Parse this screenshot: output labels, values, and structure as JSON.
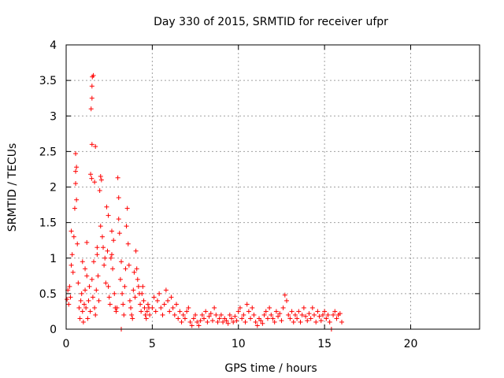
{
  "chart_data": {
    "type": "scatter",
    "title": "Day 330 of 2015, SRMTID for receiver ufpr",
    "xlabel": "GPS time / hours",
    "ylabel": "SRMTID / TECUs",
    "xlim": [
      0,
      24
    ],
    "ylim": [
      0,
      4
    ],
    "xticks": [
      "0",
      "5",
      "10",
      "15",
      "20"
    ],
    "yticks": [
      "0",
      "0.5",
      "1",
      "1.5",
      "2",
      "2.5",
      "3",
      "3.5",
      "4"
    ],
    "grid": true,
    "marker": "plus",
    "series_color": "#ff0000",
    "points": [
      [
        0.05,
        0.42
      ],
      [
        0.1,
        0.55
      ],
      [
        0.15,
        0.35
      ],
      [
        0.2,
        0.6
      ],
      [
        0.25,
        0.45
      ],
      [
        0.3,
        0.9
      ],
      [
        0.35,
        1.05
      ],
      [
        0.4,
        0.8
      ],
      [
        0.45,
        1.3
      ],
      [
        0.5,
        1.7
      ],
      [
        0.55,
        2.05
      ],
      [
        0.55,
        2.22
      ],
      [
        0.6,
        2.28
      ],
      [
        0.55,
        2.47
      ],
      [
        0.6,
        1.82
      ],
      [
        0.65,
        1.2
      ],
      [
        0.7,
        0.65
      ],
      [
        0.75,
        0.3
      ],
      [
        0.8,
        0.15
      ],
      [
        0.85,
        0.4
      ],
      [
        0.9,
        0.5
      ],
      [
        0.95,
        0.25
      ],
      [
        1.0,
        0.1
      ],
      [
        1.05,
        0.35
      ],
      [
        1.1,
        0.55
      ],
      [
        1.1,
        0.85
      ],
      [
        1.15,
        0.3
      ],
      [
        1.2,
        1.22
      ],
      [
        1.25,
        0.15
      ],
      [
        1.3,
        0.4
      ],
      [
        1.35,
        0.6
      ],
      [
        1.4,
        0.25
      ],
      [
        1.5,
        0.7
      ],
      [
        1.55,
        0.45
      ],
      [
        1.6,
        0.95
      ],
      [
        1.65,
        0.3
      ],
      [
        1.7,
        0.2
      ],
      [
        1.75,
        0.55
      ],
      [
        1.8,
        1.05
      ],
      [
        1.85,
        0.75
      ],
      [
        1.9,
        0.4
      ],
      [
        1.95,
        1.95
      ],
      [
        2.0,
        2.15
      ],
      [
        2.0,
        1.45
      ],
      [
        2.05,
        2.1
      ],
      [
        2.1,
        1.3
      ],
      [
        2.15,
        1.15
      ],
      [
        2.2,
        0.9
      ],
      [
        2.25,
        1.0
      ],
      [
        2.3,
        0.65
      ],
      [
        2.35,
        1.72
      ],
      [
        2.4,
        1.1
      ],
      [
        2.45,
        0.6
      ],
      [
        2.5,
        0.45
      ],
      [
        2.55,
        0.35
      ],
      [
        2.6,
        1.0
      ],
      [
        2.65,
        1.38
      ],
      [
        2.7,
        0.85
      ],
      [
        2.75,
        1.25
      ],
      [
        2.8,
        0.5
      ],
      [
        2.85,
        0.3
      ],
      [
        2.9,
        0.25
      ],
      [
        2.95,
        0.3
      ],
      [
        3.0,
        2.13
      ],
      [
        3.05,
        1.85
      ],
      [
        3.05,
        1.55
      ],
      [
        3.1,
        1.35
      ],
      [
        3.15,
        0.7
      ],
      [
        3.2,
        0.95
      ],
      [
        3.25,
        0.5
      ],
      [
        3.3,
        0.35
      ],
      [
        3.35,
        0.2
      ],
      [
        3.4,
        0.6
      ],
      [
        3.45,
        0.85
      ],
      [
        3.5,
        1.45
      ],
      [
        3.55,
        1.7
      ],
      [
        3.6,
        1.2
      ],
      [
        3.65,
        0.9
      ],
      [
        3.7,
        0.4
      ],
      [
        3.75,
        0.3
      ],
      [
        3.8,
        0.2
      ],
      [
        3.85,
        0.15
      ],
      [
        3.9,
        0.55
      ],
      [
        3.95,
        0.8
      ],
      [
        4.0,
        0.45
      ],
      [
        4.05,
        1.1
      ],
      [
        4.1,
        0.85
      ],
      [
        4.15,
        0.7
      ],
      [
        4.2,
        0.6
      ],
      [
        4.25,
        0.5
      ],
      [
        4.3,
        0.35
      ],
      [
        4.35,
        0.25
      ],
      [
        4.4,
        0.5
      ],
      [
        4.45,
        0.6
      ],
      [
        4.5,
        0.4
      ],
      [
        4.55,
        0.3
      ],
      [
        4.6,
        0.2
      ],
      [
        4.65,
        0.15
      ],
      [
        4.7,
        0.25
      ],
      [
        4.75,
        0.35
      ],
      [
        4.8,
        0.3
      ],
      [
        4.85,
        0.2
      ],
      [
        1.45,
        3.1
      ],
      [
        1.5,
        3.25
      ],
      [
        1.5,
        3.42
      ],
      [
        1.52,
        3.55
      ],
      [
        1.58,
        3.57
      ],
      [
        1.5,
        2.6
      ],
      [
        1.7,
        2.57
      ],
      [
        1.42,
        2.18
      ],
      [
        1.48,
        2.12
      ],
      [
        1.65,
        2.07
      ],
      [
        2.45,
        1.6
      ],
      [
        2.65,
        1.05
      ],
      [
        1.8,
        1.15
      ],
      [
        1.2,
        0.75
      ],
      [
        0.3,
        1.38
      ],
      [
        0.95,
        0.95
      ],
      [
        3.2,
        0.0
      ],
      [
        5.0,
        0.3
      ],
      [
        5.1,
        0.45
      ],
      [
        5.2,
        0.25
      ],
      [
        5.3,
        0.4
      ],
      [
        5.4,
        0.5
      ],
      [
        5.5,
        0.3
      ],
      [
        5.6,
        0.2
      ],
      [
        5.7,
        0.35
      ],
      [
        5.8,
        0.55
      ],
      [
        5.9,
        0.4
      ],
      [
        6.0,
        0.25
      ],
      [
        6.1,
        0.45
      ],
      [
        6.2,
        0.3
      ],
      [
        6.3,
        0.2
      ],
      [
        6.4,
        0.35
      ],
      [
        6.5,
        0.15
      ],
      [
        6.6,
        0.25
      ],
      [
        6.7,
        0.1
      ],
      [
        6.8,
        0.2
      ],
      [
        6.9,
        0.15
      ],
      [
        7.0,
        0.25
      ],
      [
        7.1,
        0.3
      ],
      [
        7.2,
        0.1
      ],
      [
        7.3,
        0.05
      ],
      [
        7.4,
        0.15
      ],
      [
        7.5,
        0.2
      ],
      [
        7.6,
        0.1
      ],
      [
        7.7,
        0.05
      ],
      [
        7.8,
        0.12
      ],
      [
        7.9,
        0.2
      ],
      [
        8.0,
        0.15
      ],
      [
        8.1,
        0.25
      ],
      [
        8.2,
        0.1
      ],
      [
        8.3,
        0.18
      ],
      [
        8.4,
        0.22
      ],
      [
        8.5,
        0.12
      ],
      [
        8.6,
        0.3
      ],
      [
        8.7,
        0.2
      ],
      [
        8.8,
        0.1
      ],
      [
        8.9,
        0.15
      ],
      [
        9.0,
        0.2
      ],
      [
        9.1,
        0.1
      ],
      [
        9.2,
        0.15
      ],
      [
        9.3,
        0.12
      ],
      [
        9.4,
        0.08
      ],
      [
        9.5,
        0.2
      ],
      [
        9.6,
        0.15
      ],
      [
        9.7,
        0.1
      ],
      [
        9.8,
        0.18
      ],
      [
        9.9,
        0.12
      ],
      [
        10.0,
        0.25
      ],
      [
        10.1,
        0.3
      ],
      [
        10.2,
        0.15
      ],
      [
        10.3,
        0.2
      ],
      [
        10.4,
        0.1
      ],
      [
        10.5,
        0.35
      ],
      [
        10.6,
        0.25
      ],
      [
        10.7,
        0.15
      ],
      [
        10.8,
        0.3
      ],
      [
        10.9,
        0.2
      ],
      [
        11.0,
        0.1
      ],
      [
        11.1,
        0.05
      ],
      [
        11.2,
        0.15
      ],
      [
        11.3,
        0.12
      ],
      [
        11.4,
        0.08
      ],
      [
        11.5,
        0.2
      ],
      [
        11.6,
        0.25
      ],
      [
        11.7,
        0.15
      ],
      [
        11.8,
        0.3
      ],
      [
        11.9,
        0.2
      ],
      [
        12.0,
        0.15
      ],
      [
        12.1,
        0.1
      ],
      [
        12.2,
        0.25
      ],
      [
        12.3,
        0.18
      ],
      [
        12.4,
        0.22
      ],
      [
        12.5,
        0.12
      ],
      [
        12.6,
        0.3
      ],
      [
        12.7,
        0.48
      ],
      [
        12.8,
        0.4
      ],
      [
        12.9,
        0.2
      ],
      [
        13.0,
        0.15
      ],
      [
        13.1,
        0.25
      ],
      [
        13.2,
        0.1
      ],
      [
        13.3,
        0.2
      ],
      [
        13.4,
        0.15
      ],
      [
        13.5,
        0.25
      ],
      [
        13.6,
        0.1
      ],
      [
        13.7,
        0.2
      ],
      [
        13.8,
        0.3
      ],
      [
        13.9,
        0.18
      ],
      [
        14.0,
        0.12
      ],
      [
        14.1,
        0.22
      ],
      [
        14.2,
        0.15
      ],
      [
        14.3,
        0.3
      ],
      [
        14.4,
        0.2
      ],
      [
        14.5,
        0.1
      ],
      [
        14.6,
        0.25
      ],
      [
        14.7,
        0.18
      ],
      [
        14.8,
        0.12
      ],
      [
        14.9,
        0.2
      ],
      [
        15.0,
        0.25
      ],
      [
        15.1,
        0.15
      ],
      [
        15.2,
        0.2
      ],
      [
        15.3,
        0.1
      ],
      [
        15.4,
        0.0
      ],
      [
        15.5,
        0.2
      ],
      [
        15.6,
        0.25
      ],
      [
        15.7,
        0.15
      ],
      [
        15.8,
        0.2
      ],
      [
        15.9,
        0.22
      ],
      [
        16.0,
        0.1
      ]
    ]
  }
}
